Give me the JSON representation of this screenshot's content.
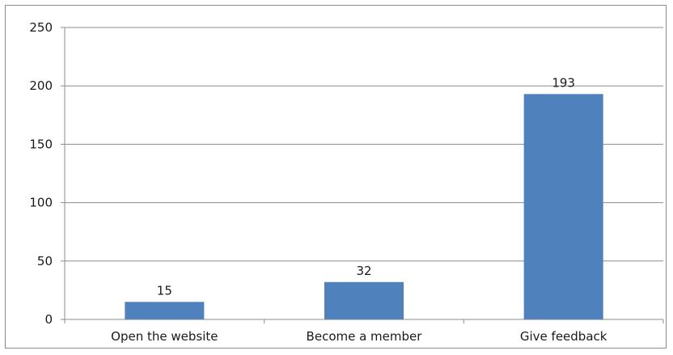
{
  "chart_data": {
    "type": "bar",
    "categories": [
      "Open the website",
      "Become a member",
      "Give feedback"
    ],
    "values": [
      15,
      32,
      193
    ],
    "data_labels": [
      "15",
      "32",
      "193"
    ],
    "ylim": [
      0,
      250
    ],
    "yticks": [
      0,
      50,
      100,
      150,
      200,
      250
    ],
    "ytick_labels": [
      "0",
      "50",
      "100",
      "150",
      "200",
      "250"
    ],
    "grid": true,
    "legend": "none",
    "bar_color": "#4f81bd",
    "grid_color": "#8c8c8c"
  }
}
